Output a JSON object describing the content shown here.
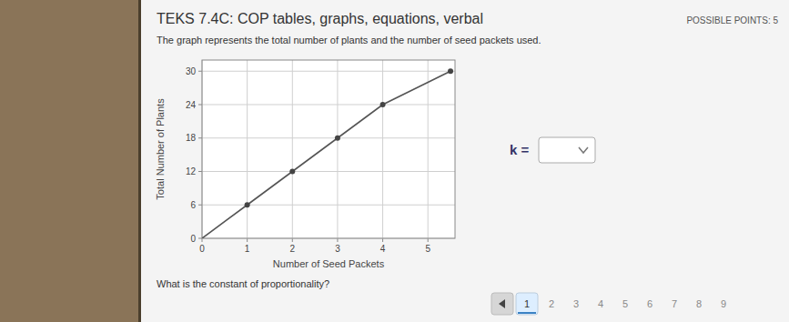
{
  "chart_data": {
    "type": "line",
    "title": "TEKS 7.4C: COP tables, graphs, equations, verbal",
    "xlabel": "Number of Seed Packets",
    "ylabel": "Total Number of Plants",
    "series": [
      {
        "type": "line",
        "color": "#555555",
        "x": [
          0,
          1,
          2,
          3,
          4,
          5.5
        ],
        "values": [
          0,
          6,
          12,
          18,
          24,
          30
        ]
      },
      {
        "type": "scatter",
        "color": "#444444",
        "x": [
          1,
          2,
          3,
          4,
          5.5
        ],
        "values": [
          6,
          12,
          18,
          24,
          30
        ]
      }
    ],
    "xlim": [
      0,
      5.6
    ],
    "ylim": [
      0,
      32
    ],
    "xticks": [
      0,
      1,
      2,
      3,
      4,
      5
    ],
    "yticks": [
      0,
      6,
      12,
      18,
      24,
      30
    ],
    "grid": true
  },
  "page": {
    "possible_points_label": "POSSIBLE POINTS: 5",
    "description": "The graph represents the total number of plants and the number of seed packets used.",
    "question": "What is the constant of proportionality?",
    "k_label": "k =",
    "nav_numbers": [
      "1",
      "2",
      "3",
      "4",
      "5",
      "6",
      "7",
      "8",
      "9"
    ]
  }
}
